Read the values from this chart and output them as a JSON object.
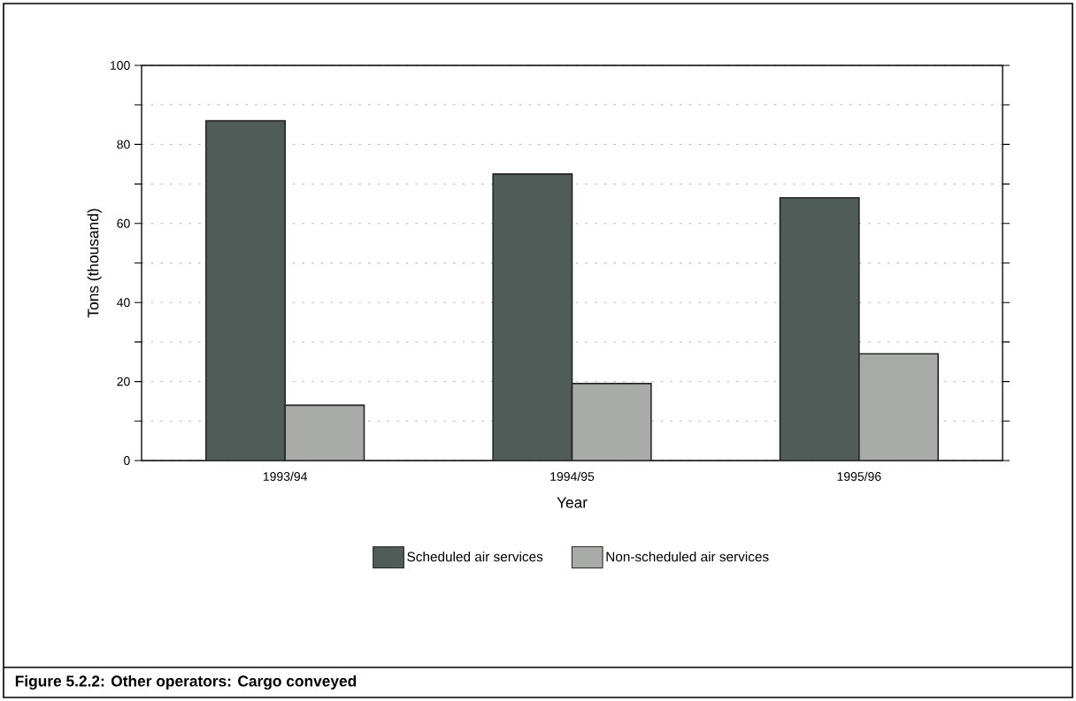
{
  "chart_data": {
    "type": "bar",
    "title": "Figure 5.2.2:    Other operators:  Cargo conveyed",
    "xlabel": "Year",
    "ylabel": "Tons (thousand)",
    "categories": [
      "1993/94",
      "1994/95",
      "1995/96"
    ],
    "series": [
      {
        "name": "Scheduled air services",
        "color": "#4f5c57",
        "values": [
          86,
          72.5,
          66.5
        ]
      },
      {
        "name": "Non-scheduled air services",
        "color": "#a9aba9",
        "values": [
          14,
          19.5,
          27
        ]
      }
    ],
    "ylim": [
      0,
      100
    ],
    "yticks": [
      0,
      {
        "value": 10,
        "label": null
      },
      20,
      {
        "value": 30,
        "label": null
      },
      40,
      {
        "value": 50,
        "label": null
      },
      60,
      {
        "value": 70,
        "label": null
      },
      80,
      {
        "value": 90,
        "label": null
      },
      100
    ],
    "grid": "y",
    "legend": "bottom"
  }
}
